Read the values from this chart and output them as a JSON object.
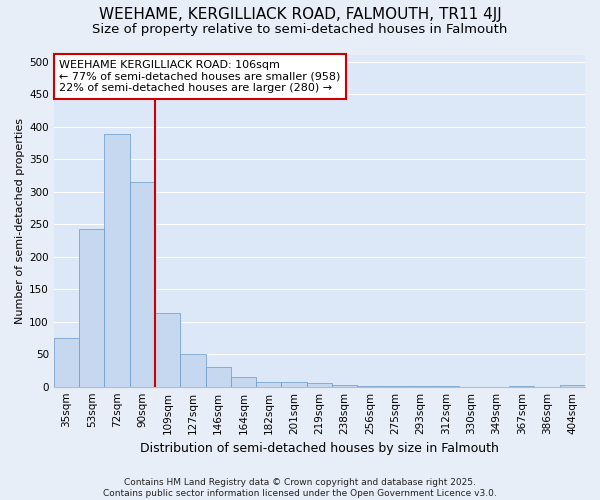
{
  "title1": "WEEHAME, KERGILLIACK ROAD, FALMOUTH, TR11 4JJ",
  "title2": "Size of property relative to semi-detached houses in Falmouth",
  "xlabel": "Distribution of semi-detached houses by size in Falmouth",
  "ylabel": "Number of semi-detached properties",
  "categories": [
    "35sqm",
    "53sqm",
    "72sqm",
    "90sqm",
    "109sqm",
    "127sqm",
    "146sqm",
    "164sqm",
    "182sqm",
    "201sqm",
    "219sqm",
    "238sqm",
    "256sqm",
    "275sqm",
    "293sqm",
    "312sqm",
    "330sqm",
    "349sqm",
    "367sqm",
    "386sqm",
    "404sqm"
  ],
  "values": [
    75,
    243,
    388,
    315,
    113,
    50,
    30,
    15,
    7,
    7,
    6,
    3,
    1,
    1,
    1,
    1,
    0,
    0,
    1,
    0,
    3
  ],
  "bar_color": "#c5d8f0",
  "bar_edge_color": "#6699cc",
  "vline_x_index": 3.5,
  "vline_color": "#cc0000",
  "annotation_line1": "WEEHAME KERGILLIACK ROAD: 106sqm",
  "annotation_line2": "← 77% of semi-detached houses are smaller (958)",
  "annotation_line3": "22% of semi-detached houses are larger (280) →",
  "annotation_box_color": "#cc0000",
  "annotation_box_fill": "#ffffff",
  "footer_text": "Contains HM Land Registry data © Crown copyright and database right 2025.\nContains public sector information licensed under the Open Government Licence v3.0.",
  "ylim": [
    0,
    510
  ],
  "yticks": [
    0,
    50,
    100,
    150,
    200,
    250,
    300,
    350,
    400,
    450,
    500
  ],
  "background_color": "#dce8f8",
  "grid_color": "#ffffff",
  "fig_facecolor": "#e8eef8",
  "title_fontsize": 11,
  "subtitle_fontsize": 9.5,
  "ylabel_fontsize": 8,
  "xlabel_fontsize": 9,
  "annotation_fontsize": 8,
  "tick_fontsize": 7.5,
  "footer_fontsize": 6.5
}
